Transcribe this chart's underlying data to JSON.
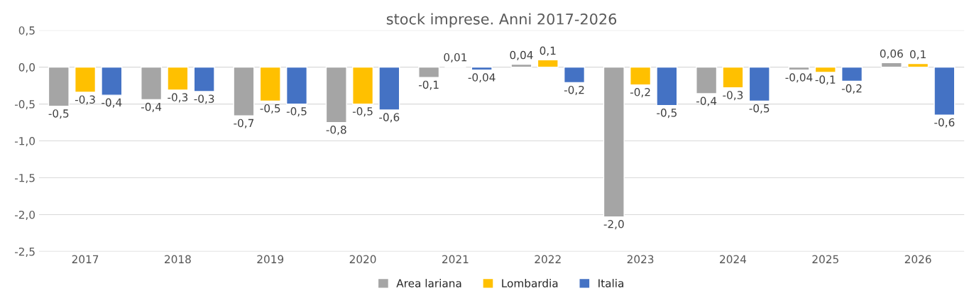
{
  "chart_data": {
    "type": "bar",
    "title": "stock imprese. Anni 2017-2026",
    "categories": [
      "2017",
      "2018",
      "2019",
      "2020",
      "2021",
      "2022",
      "2023",
      "2024",
      "2025",
      "2026"
    ],
    "series": [
      {
        "name": "Area lariana",
        "color": "#a5a5a5",
        "values": [
          -0.53,
          -0.44,
          -0.66,
          -0.75,
          -0.14,
          0.04,
          -2.03,
          -0.36,
          -0.04,
          0.06
        ],
        "value_labels": [
          "-0,5",
          "-0,4",
          "-0,7",
          "-0,8",
          "-0,1",
          "0,04",
          "-2,0",
          "-0,4",
          "-0,04",
          "0,06"
        ]
      },
      {
        "name": "Lombardia",
        "color": "#ffc000",
        "values": [
          -0.34,
          -0.31,
          -0.46,
          -0.5,
          0.01,
          0.1,
          -0.24,
          -0.28,
          -0.07,
          0.05
        ],
        "value_labels": [
          "-0,3",
          "-0,3",
          "-0,5",
          "-0,5",
          "0,01",
          "0,1",
          "-0,2",
          "-0,3",
          "-0,1",
          "0,1"
        ]
      },
      {
        "name": "Italia",
        "color": "#4472c4",
        "values": [
          -0.38,
          -0.33,
          -0.5,
          -0.58,
          -0.04,
          -0.21,
          -0.52,
          -0.46,
          -0.19,
          -0.65
        ],
        "value_labels": [
          "-0,4",
          "-0,3",
          "-0,5",
          "-0,6",
          "-0,04",
          "-0,2",
          "-0,5",
          "-0,5",
          "-0,2",
          "-0,6"
        ]
      }
    ],
    "ylim": [
      -2.5,
      0.5
    ],
    "yticks": [
      {
        "value": 0.5,
        "label": "0,5"
      },
      {
        "value": 0,
        "label": "0,0"
      },
      {
        "value": -0.5,
        "label": "-0,5"
      },
      {
        "value": -1,
        "label": "-1,0"
      },
      {
        "value": -1.5,
        "label": "-1,5"
      },
      {
        "value": -2,
        "label": "-2,0"
      },
      {
        "value": -2.5,
        "label": "-2,5"
      }
    ],
    "grid": "y",
    "legend": "bottom"
  }
}
